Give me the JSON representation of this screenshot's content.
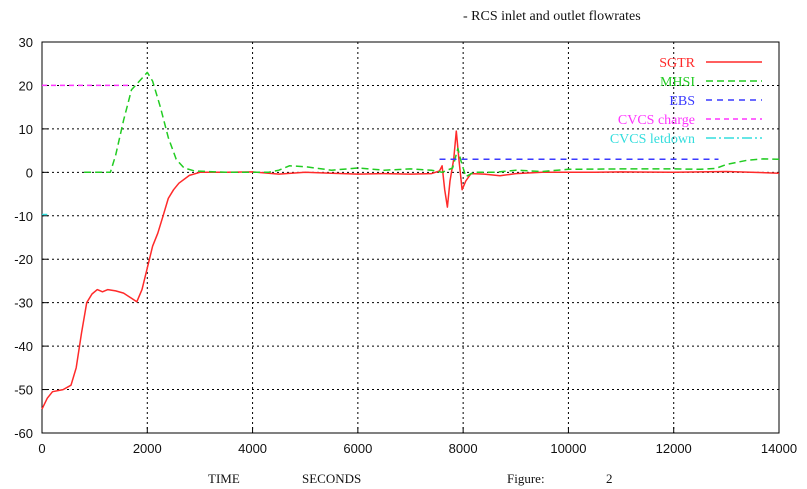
{
  "chart_data": {
    "type": "line",
    "title": "- RCS inlet and outlet flowrates",
    "xlabel": "TIME",
    "xunit": "SECONDS",
    "figure_label": "Figure:",
    "figure_number": "2",
    "xlim": [
      0,
      14000
    ],
    "ylim": [
      -60,
      30
    ],
    "xticks": [
      0,
      2000,
      4000,
      6000,
      8000,
      10000,
      12000,
      14000
    ],
    "yticks": [
      30,
      20,
      10,
      0,
      -10,
      -20,
      -30,
      -40,
      -50,
      -60
    ],
    "grid": true,
    "legend_position": "top-right",
    "series": [
      {
        "name": "SGTR",
        "color": "#ff2a2a",
        "dash": "solid",
        "points": [
          [
            0,
            -54.5
          ],
          [
            100,
            -52
          ],
          [
            200,
            -50.5
          ],
          [
            400,
            -50
          ],
          [
            550,
            -49
          ],
          [
            650,
            -45
          ],
          [
            750,
            -37
          ],
          [
            850,
            -30
          ],
          [
            950,
            -28
          ],
          [
            1050,
            -27
          ],
          [
            1150,
            -27.5
          ],
          [
            1250,
            -27
          ],
          [
            1400,
            -27.3
          ],
          [
            1550,
            -27.8
          ],
          [
            1700,
            -29
          ],
          [
            1800,
            -29.8
          ],
          [
            1900,
            -27
          ],
          [
            2000,
            -22
          ],
          [
            2100,
            -17
          ],
          [
            2200,
            -14
          ],
          [
            2300,
            -10
          ],
          [
            2400,
            -6
          ],
          [
            2500,
            -4
          ],
          [
            2600,
            -2.5
          ],
          [
            2800,
            -0.7
          ],
          [
            3000,
            0
          ],
          [
            3500,
            0
          ],
          [
            4000,
            0.1
          ],
          [
            4500,
            -0.4
          ],
          [
            5000,
            0
          ],
          [
            5500,
            -0.2
          ],
          [
            6000,
            -0.4
          ],
          [
            6500,
            -0.3
          ],
          [
            7000,
            -0.4
          ],
          [
            7400,
            -0.3
          ],
          [
            7550,
            0.3
          ],
          [
            7600,
            1.5
          ],
          [
            7650,
            -4
          ],
          [
            7700,
            -8
          ],
          [
            7750,
            -2
          ],
          [
            7820,
            3
          ],
          [
            7870,
            9.5
          ],
          [
            7920,
            3
          ],
          [
            7980,
            -4
          ],
          [
            8050,
            -2
          ],
          [
            8150,
            -0.3
          ],
          [
            8400,
            -0.4
          ],
          [
            8700,
            -0.8
          ],
          [
            9000,
            -0.3
          ],
          [
            9500,
            0
          ],
          [
            10000,
            0
          ],
          [
            10500,
            0
          ],
          [
            11000,
            0.1
          ],
          [
            12000,
            0
          ],
          [
            13000,
            0.2
          ],
          [
            14000,
            -0.2
          ]
        ]
      },
      {
        "name": "MHSI",
        "color": "#22cc22",
        "dash": "7,4",
        "points": [
          [
            800,
            0
          ],
          [
            1300,
            0
          ],
          [
            1400,
            4
          ],
          [
            1550,
            12
          ],
          [
            1700,
            19
          ],
          [
            1850,
            21
          ],
          [
            2000,
            23
          ],
          [
            2100,
            21
          ],
          [
            2250,
            15
          ],
          [
            2400,
            8
          ],
          [
            2550,
            3
          ],
          [
            2700,
            1
          ],
          [
            2900,
            0.3
          ],
          [
            3500,
            0
          ],
          [
            4300,
            0
          ],
          [
            4500,
            0.5
          ],
          [
            4700,
            1.5
          ],
          [
            5000,
            1.3
          ],
          [
            5500,
            0.5
          ],
          [
            6000,
            1
          ],
          [
            6500,
            0.5
          ],
          [
            7000,
            0.8
          ],
          [
            7400,
            0.5
          ],
          [
            7600,
            0
          ],
          [
            7800,
            1
          ],
          [
            7900,
            5.5
          ],
          [
            7950,
            3
          ],
          [
            8050,
            -1
          ],
          [
            8200,
            0
          ],
          [
            8600,
            0
          ],
          [
            9000,
            0.5
          ],
          [
            9500,
            0.2
          ],
          [
            10000,
            0.7
          ],
          [
            11000,
            0.8
          ],
          [
            12000,
            0.8
          ],
          [
            12500,
            0.7
          ],
          [
            12800,
            0.9
          ],
          [
            13000,
            1.8
          ],
          [
            13400,
            2.8
          ],
          [
            13700,
            3.1
          ],
          [
            14000,
            3.0
          ]
        ]
      },
      {
        "name": "EBS",
        "color": "#3a3aff",
        "dash": "6,5",
        "points": [
          [
            7550,
            3
          ],
          [
            12850,
            3
          ]
        ]
      },
      {
        "name": "CVCS charge",
        "color": "#ff33ff",
        "dash": "5,4",
        "points": [
          [
            0,
            20
          ],
          [
            1700,
            20
          ]
        ]
      },
      {
        "name": "CVCS letdown",
        "color": "#33dddd",
        "dash": "10,3,2,3",
        "points": [
          [
            0,
            -9.7
          ],
          [
            100,
            -9.7
          ]
        ]
      }
    ]
  }
}
